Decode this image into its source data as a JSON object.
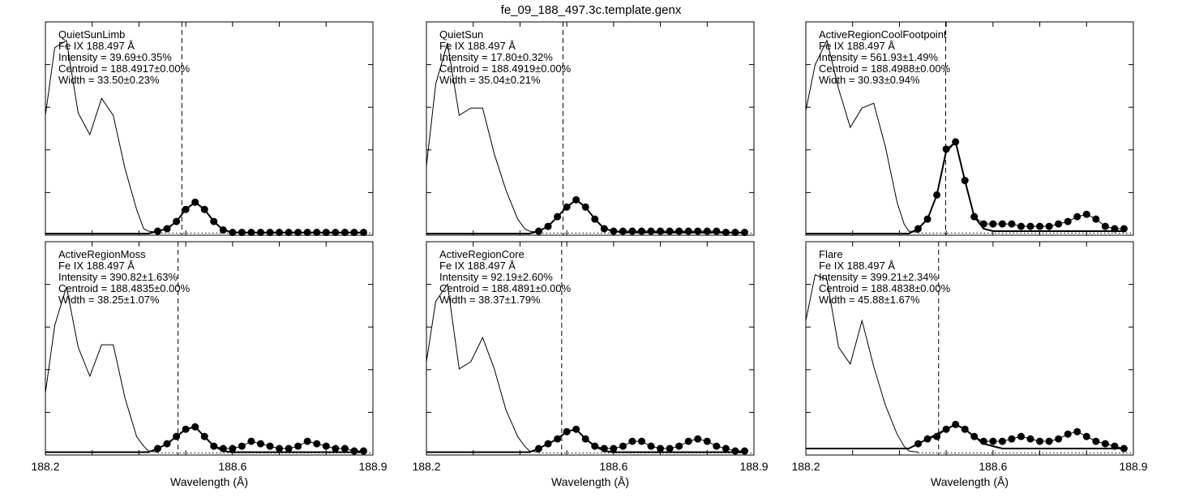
{
  "figure_title": "fe_09_188_497.3c.template.genx",
  "chart_data": [
    {
      "type": "line",
      "name": "QuietSunLimb",
      "line_label": "Fe IX 188.497 Å",
      "annotations": [
        "QuietSunLimb",
        "Fe IX 188.497 Å",
        "Intensity = 39.69±0.35%",
        "Centroid = 188.4917±0.00%",
        "Width = 33.50±0.23%"
      ],
      "xlabel": "",
      "xlim": [
        188.2,
        188.9
      ],
      "ylim": [
        0,
        1
      ],
      "xticks": [],
      "centroid": 188.4917,
      "reference_spectrum": {
        "x": [
          188.2,
          188.22,
          188.245,
          188.27,
          188.295,
          188.32,
          188.345,
          188.37,
          188.395,
          188.41,
          188.42,
          188.44
        ],
        "y": [
          0.49,
          0.77,
          0.8,
          0.5,
          0.41,
          0.56,
          0.49,
          0.27,
          0.1,
          0.02,
          0.01,
          0.005
        ]
      },
      "observed_points": {
        "x": [
          188.44,
          188.46,
          188.48,
          188.5,
          188.52,
          188.54,
          188.56,
          188.58,
          188.6,
          188.62,
          188.64,
          188.66,
          188.68,
          188.7,
          188.72,
          188.74,
          188.76,
          188.78,
          188.8,
          188.82,
          188.84,
          188.86,
          188.88
        ],
        "y": [
          0.01,
          0.02,
          0.05,
          0.1,
          0.13,
          0.1,
          0.05,
          0.015,
          0.005,
          0.005,
          0.005,
          0.005,
          0.005,
          0.005,
          0.005,
          0.005,
          0.005,
          0.005,
          0.005,
          0.005,
          0.005,
          0.005,
          0.005
        ]
      },
      "fit_curve": {
        "x": [
          188.2,
          188.42,
          188.44,
          188.46,
          188.48,
          188.5,
          188.52,
          188.54,
          188.56,
          188.58,
          188.6,
          188.62,
          188.88
        ],
        "y": [
          0.0,
          0.0,
          0.01,
          0.02,
          0.05,
          0.1,
          0.13,
          0.1,
          0.05,
          0.015,
          0.005,
          0.004,
          0.004
        ]
      }
    },
    {
      "type": "line",
      "name": "QuietSun",
      "line_label": "Fe IX 188.497 Å",
      "annotations": [
        "QuietSun",
        "Fe IX 188.497 Å",
        "Intensity = 17.80±0.32%",
        "Centroid = 188.4919±0.00%",
        "Width = 35.04±0.21%"
      ],
      "xlabel": "",
      "xlim": [
        188.2,
        188.9
      ],
      "ylim": [
        0,
        1
      ],
      "xticks": [],
      "centroid": 188.4919,
      "reference_spectrum": {
        "x": [
          188.2,
          188.22,
          188.245,
          188.27,
          188.295,
          188.32,
          188.345,
          188.37,
          188.395,
          188.41,
          188.42,
          188.44
        ],
        "y": [
          0.28,
          0.62,
          0.79,
          0.49,
          0.52,
          0.52,
          0.33,
          0.18,
          0.06,
          0.02,
          0.01,
          0.005
        ]
      },
      "observed_points": {
        "x": [
          188.44,
          188.46,
          188.48,
          188.5,
          188.52,
          188.54,
          188.56,
          188.58,
          188.6,
          188.62,
          188.64,
          188.66,
          188.68,
          188.7,
          188.72,
          188.74,
          188.76,
          188.78,
          188.8,
          188.82,
          188.84,
          188.86,
          188.88
        ],
        "y": [
          0.01,
          0.03,
          0.07,
          0.11,
          0.14,
          0.11,
          0.06,
          0.02,
          0.01,
          0.01,
          0.01,
          0.01,
          0.01,
          0.01,
          0.01,
          0.01,
          0.01,
          0.01,
          0.01,
          0.01,
          0.005,
          0.005,
          0.005
        ]
      },
      "fit_curve": {
        "x": [
          188.2,
          188.42,
          188.44,
          188.46,
          188.48,
          188.5,
          188.52,
          188.54,
          188.56,
          188.58,
          188.6,
          188.62,
          188.88
        ],
        "y": [
          0.0,
          0.0,
          0.01,
          0.03,
          0.07,
          0.11,
          0.14,
          0.11,
          0.06,
          0.02,
          0.01,
          0.005,
          0.004
        ]
      }
    },
    {
      "type": "line",
      "name": "ActiveRegionCoolFootpoint",
      "line_label": "Fe IX 188.497 Å",
      "annotations": [
        "ActiveRegionCoolFootpoint",
        "Fe IX 188.497 Å",
        "Intensity = 561.93±1.49%",
        "Centroid = 188.4988±0.00%",
        "Width = 30.93±0.94%"
      ],
      "xlabel": "",
      "xlim": [
        188.2,
        188.9
      ],
      "ylim": [
        0,
        1
      ],
      "xticks": [],
      "centroid": 188.4988,
      "reference_spectrum": {
        "x": [
          188.2,
          188.22,
          188.245,
          188.27,
          188.295,
          188.32,
          188.345,
          188.37,
          188.395,
          188.41,
          188.42,
          188.44
        ],
        "y": [
          0.51,
          0.7,
          0.8,
          0.6,
          0.44,
          0.52,
          0.54,
          0.36,
          0.13,
          0.04,
          0.01,
          0.005
        ]
      },
      "observed_points": {
        "x": [
          188.44,
          188.46,
          188.48,
          188.5,
          188.52,
          188.54,
          188.56,
          188.58,
          188.6,
          188.62,
          188.64,
          188.66,
          188.68,
          188.7,
          188.72,
          188.74,
          188.76,
          188.78,
          188.8,
          188.82,
          188.84,
          188.86,
          188.88
        ],
        "y": [
          0.02,
          0.06,
          0.16,
          0.35,
          0.38,
          0.22,
          0.07,
          0.04,
          0.04,
          0.04,
          0.04,
          0.03,
          0.03,
          0.03,
          0.03,
          0.04,
          0.05,
          0.07,
          0.08,
          0.06,
          0.03,
          0.02,
          0.02
        ]
      },
      "fit_curve": {
        "x": [
          188.2,
          188.42,
          188.44,
          188.46,
          188.48,
          188.5,
          188.52,
          188.54,
          188.56,
          188.58,
          188.6,
          188.62,
          188.88
        ],
        "y": [
          0.0,
          0.0,
          0.02,
          0.06,
          0.16,
          0.34,
          0.38,
          0.22,
          0.07,
          0.02,
          0.01,
          0.01,
          0.01
        ]
      }
    },
    {
      "type": "line",
      "name": "ActiveRegionMoss",
      "line_label": "Fe IX 188.497 Å",
      "annotations": [
        "ActiveRegionMoss",
        "Fe IX 188.497 Å",
        "Intensity = 390.82±1.63%",
        "Centroid = 188.4835±0.00%",
        "Width = 38.25±1.07%"
      ],
      "xlabel": "Wavelength (Å)",
      "xlim": [
        188.2,
        188.9
      ],
      "ylim": [
        0,
        1
      ],
      "xticks": [],
      "centroid": 188.4835,
      "reference_spectrum": {
        "x": [
          188.2,
          188.22,
          188.245,
          188.27,
          188.295,
          188.32,
          188.345,
          188.37,
          188.395,
          188.41,
          188.42,
          188.44
        ],
        "y": [
          0.25,
          0.53,
          0.69,
          0.44,
          0.32,
          0.45,
          0.45,
          0.23,
          0.07,
          0.03,
          0.01,
          0.005
        ]
      },
      "observed_points": {
        "x": [
          188.44,
          188.46,
          188.48,
          188.5,
          188.52,
          188.54,
          188.56,
          188.58,
          188.6,
          188.62,
          188.64,
          188.66,
          188.68,
          188.7,
          188.72,
          188.74,
          188.76,
          188.78,
          188.8,
          188.82,
          188.84,
          188.86,
          188.88
        ],
        "y": [
          0.02,
          0.04,
          0.07,
          0.1,
          0.11,
          0.07,
          0.03,
          0.02,
          0.02,
          0.03,
          0.05,
          0.04,
          0.03,
          0.02,
          0.02,
          0.03,
          0.05,
          0.04,
          0.03,
          0.02,
          0.02,
          0.01,
          0.01
        ]
      },
      "fit_curve": {
        "x": [
          188.2,
          188.42,
          188.44,
          188.46,
          188.48,
          188.5,
          188.52,
          188.54,
          188.56,
          188.58,
          188.6,
          188.62,
          188.88
        ],
        "y": [
          0.005,
          0.005,
          0.02,
          0.04,
          0.07,
          0.1,
          0.11,
          0.07,
          0.03,
          0.01,
          0.005,
          0.005,
          0.005
        ]
      }
    },
    {
      "type": "line",
      "name": "ActiveRegionCore",
      "line_label": "Fe IX 188.497 Å",
      "annotations": [
        "ActiveRegionCore",
        "Fe IX 188.497 Å",
        "Intensity = 92.19±2.60%",
        "Centroid = 188.4891±0.00%",
        "Width = 38.37±1.79%"
      ],
      "xlabel": "Wavelength (Å)",
      "xlim": [
        188.2,
        188.9
      ],
      "ylim": [
        0,
        1
      ],
      "xticks": [],
      "centroid": 188.4891,
      "reference_spectrum": {
        "x": [
          188.2,
          188.22,
          188.245,
          188.27,
          188.295,
          188.32,
          188.345,
          188.37,
          188.395,
          188.41,
          188.42,
          188.44
        ],
        "y": [
          0.38,
          0.63,
          0.7,
          0.35,
          0.38,
          0.48,
          0.35,
          0.18,
          0.07,
          0.03,
          0.01,
          0.005
        ]
      },
      "observed_points": {
        "x": [
          188.44,
          188.46,
          188.48,
          188.5,
          188.52,
          188.54,
          188.56,
          188.58,
          188.6,
          188.62,
          188.64,
          188.66,
          188.68,
          188.7,
          188.72,
          188.74,
          188.76,
          188.78,
          188.8,
          188.82,
          188.84,
          188.86,
          188.88
        ],
        "y": [
          0.02,
          0.04,
          0.06,
          0.09,
          0.1,
          0.06,
          0.03,
          0.02,
          0.02,
          0.03,
          0.05,
          0.05,
          0.03,
          0.02,
          0.02,
          0.03,
          0.05,
          0.06,
          0.05,
          0.03,
          0.02,
          0.01,
          0.01
        ]
      },
      "fit_curve": {
        "x": [
          188.2,
          188.42,
          188.44,
          188.46,
          188.48,
          188.5,
          188.52,
          188.54,
          188.56,
          188.58,
          188.6,
          188.62,
          188.88
        ],
        "y": [
          0.005,
          0.005,
          0.02,
          0.04,
          0.06,
          0.09,
          0.1,
          0.06,
          0.03,
          0.01,
          0.005,
          0.005,
          0.005
        ]
      }
    },
    {
      "type": "line",
      "name": "Flare",
      "line_label": "Fe IX 188.497 Å",
      "annotations": [
        "Flare",
        "Fe IX 188.497 Å",
        "Intensity = 399.21±2.34%",
        "Centroid = 188.4838±0.00%",
        "Width = 45.88±1.67%"
      ],
      "xlabel": "Wavelength (Å)",
      "xlim": [
        188.2,
        188.9
      ],
      "ylim": [
        0,
        1
      ],
      "xticks": [],
      "centroid": 188.4838,
      "reference_spectrum": {
        "x": [
          188.2,
          188.22,
          188.245,
          188.27,
          188.295,
          188.32,
          188.345,
          188.37,
          188.395,
          188.41,
          188.42,
          188.44
        ],
        "y": [
          0.55,
          0.74,
          0.72,
          0.44,
          0.37,
          0.55,
          0.36,
          0.2,
          0.08,
          0.03,
          0.01,
          0.005
        ]
      },
      "observed_points": {
        "x": [
          188.44,
          188.46,
          188.48,
          188.5,
          188.52,
          188.54,
          188.56,
          188.58,
          188.6,
          188.62,
          188.64,
          188.66,
          188.68,
          188.7,
          188.72,
          188.74,
          188.76,
          188.78,
          188.8,
          188.82,
          188.84,
          188.86,
          188.88
        ],
        "y": [
          0.04,
          0.06,
          0.07,
          0.1,
          0.12,
          0.1,
          0.07,
          0.05,
          0.05,
          0.05,
          0.06,
          0.07,
          0.06,
          0.05,
          0.05,
          0.06,
          0.08,
          0.09,
          0.07,
          0.05,
          0.04,
          0.03,
          0.02
        ]
      },
      "fit_curve": {
        "x": [
          188.2,
          188.42,
          188.44,
          188.46,
          188.48,
          188.5,
          188.52,
          188.54,
          188.56,
          188.58,
          188.6,
          188.62,
          188.88
        ],
        "y": [
          0.02,
          0.02,
          0.04,
          0.06,
          0.08,
          0.1,
          0.12,
          0.1,
          0.07,
          0.04,
          0.03,
          0.02,
          0.02
        ]
      }
    }
  ],
  "shared_xaxis": {
    "xticks": [
      188.2,
      188.6,
      188.9
    ],
    "xtick_labels": [
      "188.2",
      "188.6",
      "188.9"
    ]
  }
}
